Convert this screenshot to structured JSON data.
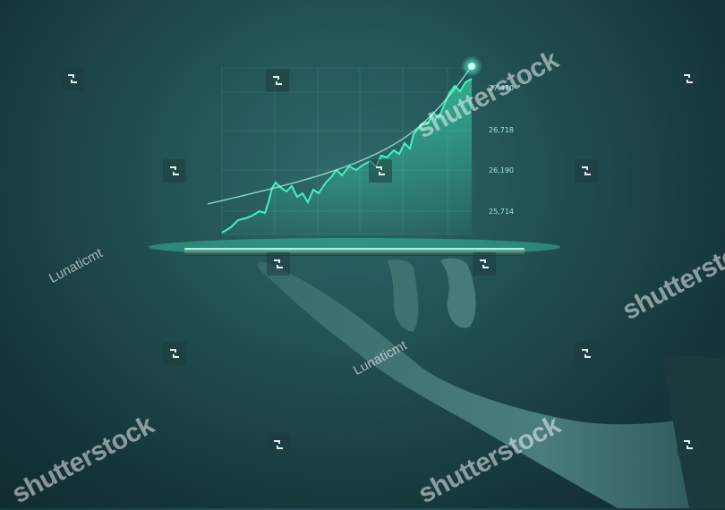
{
  "chart_data": {
    "type": "line",
    "yticks": [
      "27,410",
      "26,718",
      "26,190",
      "25,714"
    ]
  },
  "watermarks": {
    "brand": "shutterstock",
    "contributor": "Lunaticmt"
  },
  "colors": {
    "chart_line": "#3ff2c0",
    "background": "#1f4a4e"
  }
}
